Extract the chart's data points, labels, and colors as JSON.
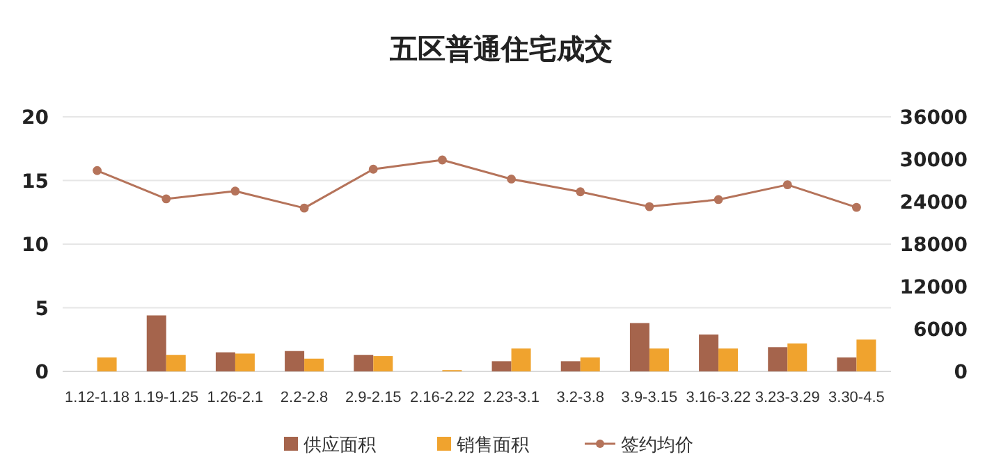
{
  "chart_data": {
    "type": "bar",
    "title": "五区普通住宅成交",
    "categories": [
      "1.12-1.18",
      "1.19-1.25",
      "1.26-2.1",
      "2.2-2.8",
      "2.9-2.15",
      "2.16-2.22",
      "2.23-3.1",
      "3.2-3.8",
      "3.9-3.15",
      "3.16-3.22",
      "3.23-3.29",
      "3.30-4.5"
    ],
    "series": [
      {
        "name": "供应面积",
        "color": "#a5644c",
        "values": [
          null,
          4.4,
          1.5,
          1.6,
          1.3,
          null,
          0.8,
          0.8,
          3.8,
          2.9,
          1.9,
          1.1
        ]
      },
      {
        "name": "销售面积",
        "color": "#f0a32e",
        "values": [
          1.1,
          1.3,
          1.4,
          1.0,
          1.2,
          0.1,
          1.8,
          1.1,
          1.8,
          1.8,
          2.2,
          2.5
        ]
      },
      {
        "name": "签约均价",
        "type": "line",
        "axis": "y2",
        "color": "#b5735a",
        "values": [
          28400,
          24400,
          25500,
          23100,
          28600,
          29900,
          27200,
          25400,
          23300,
          24300,
          26400,
          23200
        ]
      }
    ],
    "ylim": [
      0,
      20
    ],
    "yticks": [
      0,
      5,
      10,
      15,
      20
    ],
    "y2lim": [
      0,
      36000
    ],
    "y2ticks": [
      0,
      6000,
      12000,
      18000,
      24000,
      30000,
      36000
    ],
    "grid": "y",
    "legend": "bottom",
    "marker": "circle"
  }
}
